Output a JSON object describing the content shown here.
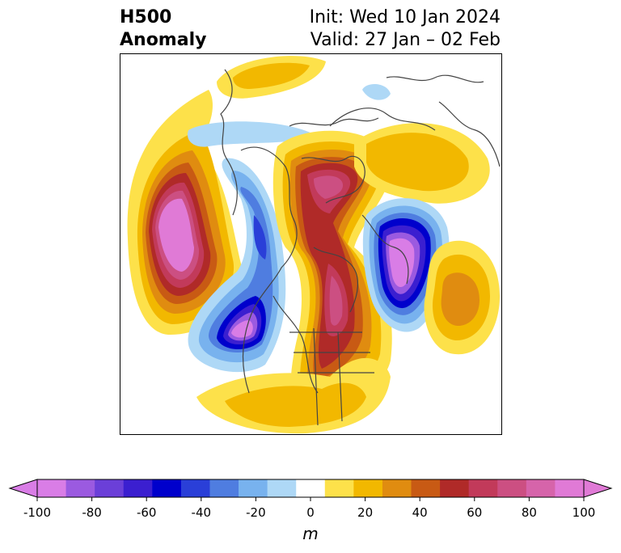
{
  "title": {
    "left_line1": "H500",
    "left_line2": "Anomaly",
    "right_line1": "Init: Wed 10 Jan 2024",
    "right_line2": "Valid: 27 Jan – 02 Feb"
  },
  "colorbar": {
    "unit_label": "m",
    "ticks": [
      "-100",
      "-80",
      "-60",
      "-40",
      "-20",
      "0",
      "20",
      "40",
      "60",
      "80",
      "100"
    ],
    "levels": [
      -100,
      -90,
      -80,
      -70,
      -60,
      -50,
      -40,
      -30,
      -20,
      -10,
      10,
      20,
      30,
      40,
      50,
      60,
      70,
      80,
      90,
      100
    ],
    "colors": [
      "#d97de6",
      "#9b5ae0",
      "#6b3fd8",
      "#3b1fd0",
      "#0000cc",
      "#2a3fd8",
      "#4f7de0",
      "#78b2ee",
      "#aed8f6",
      "#ffffff",
      "#fde14a",
      "#f2b800",
      "#e08c10",
      "#c85a14",
      "#b02a28",
      "#c23a5a",
      "#cc4f82",
      "#d664aa",
      "#e07ad6"
    ],
    "extend_low_color": "#d97de6",
    "extend_high_color": "#e07ad6"
  },
  "map": {
    "projection": "north polar stereographic",
    "region": "Northern Hemisphere — North America / Arctic",
    "anomaly_centers": [
      {
        "sign": "positive",
        "peak_m": 100,
        "location": "northeast Pacific"
      },
      {
        "sign": "negative",
        "peak_m": -100,
        "location": "Gulf of Alaska / west coast"
      },
      {
        "sign": "positive",
        "peak_m": 90,
        "location": "central Canada"
      },
      {
        "sign": "positive",
        "peak_m": 90,
        "location": "Siberia / Arctic"
      },
      {
        "sign": "negative",
        "peak_m": -100,
        "location": "Scandinavia / Europe"
      },
      {
        "sign": "negative",
        "peak_m": -50,
        "location": "Arctic Ocean"
      },
      {
        "sign": "positive",
        "peak_m": 40,
        "location": "North Atlantic"
      }
    ]
  }
}
